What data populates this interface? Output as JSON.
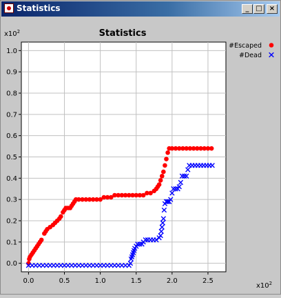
{
  "window": {
    "title": "Statistics",
    "buttons": {
      "minimize": "_",
      "maximize": "□",
      "close": "×"
    }
  },
  "chart_data": {
    "type": "scatter",
    "title": "Statistics",
    "x_multiplier": "x10",
    "x_multiplier_exp": "2",
    "y_multiplier": "x10",
    "y_multiplier_exp": "2",
    "xlim": [
      -0.1,
      2.75
    ],
    "ylim": [
      -0.04,
      1.04
    ],
    "x_ticks": [
      0.0,
      0.5,
      1.0,
      1.5,
      2.0,
      2.5
    ],
    "x_tick_labels": [
      "0.0",
      "0.5",
      "1.0",
      "1.5",
      "2.0",
      "2.5"
    ],
    "y_ticks": [
      0.0,
      0.1,
      0.2,
      0.3,
      0.4,
      0.5,
      0.6,
      0.7,
      0.8,
      0.9,
      1.0
    ],
    "y_tick_labels": [
      "0.0",
      "0.1",
      "0.2",
      "0.3",
      "0.4",
      "0.5",
      "0.6",
      "0.7",
      "0.8",
      "0.9",
      "1.0"
    ],
    "grid": true,
    "legend_position": "right",
    "series": [
      {
        "name": "#Escaped",
        "marker": "circle",
        "color": "#ff0000",
        "points": [
          [
            0.0,
            0.0
          ],
          [
            0.01,
            0.02
          ],
          [
            0.02,
            0.03
          ],
          [
            0.04,
            0.04
          ],
          [
            0.06,
            0.05
          ],
          [
            0.08,
            0.06
          ],
          [
            0.1,
            0.07
          ],
          [
            0.12,
            0.08
          ],
          [
            0.14,
            0.09
          ],
          [
            0.16,
            0.1
          ],
          [
            0.18,
            0.11
          ],
          [
            0.22,
            0.14
          ],
          [
            0.24,
            0.15
          ],
          [
            0.26,
            0.16
          ],
          [
            0.3,
            0.17
          ],
          [
            0.34,
            0.18
          ],
          [
            0.37,
            0.19
          ],
          [
            0.4,
            0.2
          ],
          [
            0.43,
            0.21
          ],
          [
            0.45,
            0.22
          ],
          [
            0.48,
            0.24
          ],
          [
            0.5,
            0.25
          ],
          [
            0.52,
            0.26
          ],
          [
            0.55,
            0.26
          ],
          [
            0.58,
            0.26
          ],
          [
            0.6,
            0.27
          ],
          [
            0.62,
            0.28
          ],
          [
            0.64,
            0.29
          ],
          [
            0.66,
            0.3
          ],
          [
            0.7,
            0.3
          ],
          [
            0.75,
            0.3
          ],
          [
            0.8,
            0.3
          ],
          [
            0.85,
            0.3
          ],
          [
            0.9,
            0.3
          ],
          [
            0.95,
            0.3
          ],
          [
            1.0,
            0.3
          ],
          [
            1.05,
            0.31
          ],
          [
            1.1,
            0.31
          ],
          [
            1.15,
            0.31
          ],
          [
            1.2,
            0.32
          ],
          [
            1.25,
            0.32
          ],
          [
            1.3,
            0.32
          ],
          [
            1.35,
            0.32
          ],
          [
            1.4,
            0.32
          ],
          [
            1.45,
            0.32
          ],
          [
            1.5,
            0.32
          ],
          [
            1.55,
            0.32
          ],
          [
            1.6,
            0.32
          ],
          [
            1.65,
            0.33
          ],
          [
            1.7,
            0.33
          ],
          [
            1.75,
            0.34
          ],
          [
            1.78,
            0.35
          ],
          [
            1.8,
            0.36
          ],
          [
            1.82,
            0.37
          ],
          [
            1.84,
            0.39
          ],
          [
            1.86,
            0.41
          ],
          [
            1.88,
            0.43
          ],
          [
            1.9,
            0.46
          ],
          [
            1.92,
            0.49
          ],
          [
            1.94,
            0.52
          ],
          [
            1.96,
            0.54
          ],
          [
            2.0,
            0.54
          ],
          [
            2.05,
            0.54
          ],
          [
            2.1,
            0.54
          ],
          [
            2.15,
            0.54
          ],
          [
            2.2,
            0.54
          ],
          [
            2.25,
            0.54
          ],
          [
            2.3,
            0.54
          ],
          [
            2.35,
            0.54
          ],
          [
            2.4,
            0.54
          ],
          [
            2.45,
            0.54
          ],
          [
            2.5,
            0.54
          ],
          [
            2.55,
            0.54
          ]
        ]
      },
      {
        "name": "#Dead",
        "marker": "x",
        "color": "#0000ff",
        "points": [
          [
            0.0,
            -0.01
          ],
          [
            0.05,
            -0.01
          ],
          [
            0.1,
            -0.01
          ],
          [
            0.15,
            -0.01
          ],
          [
            0.2,
            -0.01
          ],
          [
            0.25,
            -0.01
          ],
          [
            0.3,
            -0.01
          ],
          [
            0.35,
            -0.01
          ],
          [
            0.4,
            -0.01
          ],
          [
            0.45,
            -0.01
          ],
          [
            0.5,
            -0.01
          ],
          [
            0.55,
            -0.01
          ],
          [
            0.6,
            -0.01
          ],
          [
            0.65,
            -0.01
          ],
          [
            0.7,
            -0.01
          ],
          [
            0.75,
            -0.01
          ],
          [
            0.8,
            -0.01
          ],
          [
            0.85,
            -0.01
          ],
          [
            0.9,
            -0.01
          ],
          [
            0.95,
            -0.01
          ],
          [
            1.0,
            -0.01
          ],
          [
            1.05,
            -0.01
          ],
          [
            1.1,
            -0.01
          ],
          [
            1.15,
            -0.01
          ],
          [
            1.2,
            -0.01
          ],
          [
            1.25,
            -0.01
          ],
          [
            1.3,
            -0.01
          ],
          [
            1.35,
            -0.01
          ],
          [
            1.4,
            -0.01
          ],
          [
            1.42,
            0.0
          ],
          [
            1.43,
            0.02
          ],
          [
            1.44,
            0.03
          ],
          [
            1.45,
            0.04
          ],
          [
            1.46,
            0.05
          ],
          [
            1.47,
            0.06
          ],
          [
            1.48,
            0.07
          ],
          [
            1.5,
            0.08
          ],
          [
            1.52,
            0.09
          ],
          [
            1.55,
            0.09
          ],
          [
            1.58,
            0.09
          ],
          [
            1.6,
            0.1
          ],
          [
            1.63,
            0.11
          ],
          [
            1.66,
            0.11
          ],
          [
            1.7,
            0.11
          ],
          [
            1.74,
            0.11
          ],
          [
            1.78,
            0.11
          ],
          [
            1.82,
            0.12
          ],
          [
            1.84,
            0.13
          ],
          [
            1.85,
            0.15
          ],
          [
            1.86,
            0.17
          ],
          [
            1.87,
            0.19
          ],
          [
            1.88,
            0.21
          ],
          [
            1.89,
            0.25
          ],
          [
            1.9,
            0.28
          ],
          [
            1.92,
            0.29
          ],
          [
            1.94,
            0.29
          ],
          [
            1.96,
            0.29
          ],
          [
            1.98,
            0.3
          ],
          [
            2.0,
            0.33
          ],
          [
            2.02,
            0.35
          ],
          [
            2.05,
            0.35
          ],
          [
            2.08,
            0.35
          ],
          [
            2.1,
            0.36
          ],
          [
            2.12,
            0.38
          ],
          [
            2.14,
            0.41
          ],
          [
            2.17,
            0.41
          ],
          [
            2.2,
            0.41
          ],
          [
            2.22,
            0.44
          ],
          [
            2.24,
            0.46
          ],
          [
            2.28,
            0.46
          ],
          [
            2.32,
            0.46
          ],
          [
            2.36,
            0.46
          ],
          [
            2.4,
            0.46
          ],
          [
            2.44,
            0.46
          ],
          [
            2.48,
            0.46
          ],
          [
            2.52,
            0.46
          ],
          [
            2.56,
            0.46
          ]
        ]
      }
    ]
  }
}
